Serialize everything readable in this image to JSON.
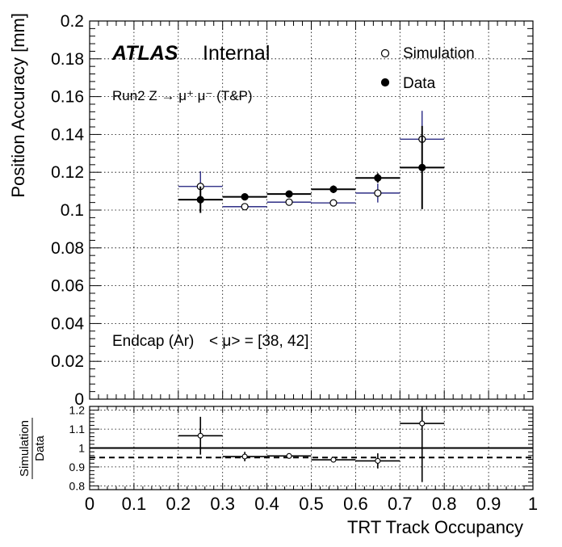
{
  "chart_data": [
    {
      "type": "scatter",
      "ylabel": "Position Accuracy [mm]",
      "ylim": [
        0,
        0.2
      ],
      "xlim": [
        0,
        1
      ],
      "yticks": [
        "0",
        "0.02",
        "0.04",
        "0.06",
        "0.08",
        "0.1",
        "0.12",
        "0.14",
        "0.16",
        "0.18",
        "0.2"
      ],
      "grid": true,
      "legend_position": "top-right",
      "annotations": {
        "atlas": "ATLAS",
        "internal": "Internal",
        "run": "Run2 Z → μ⁺ μ⁻ (T&P)",
        "region": "Endcap (Ar)",
        "pileup": "< μ> = [38, 42]"
      },
      "x": [
        0.25,
        0.35,
        0.45,
        0.55,
        0.65,
        0.75
      ],
      "series": [
        {
          "name": "Simulation",
          "marker": "open-circle",
          "color": "#1a1a7a",
          "values": [
            0.1125,
            0.1018,
            0.1042,
            0.1038,
            0.109,
            0.1375
          ],
          "yerr": [
            0.008,
            0.0012,
            0.0012,
            0.0012,
            0.005,
            0.015
          ]
        },
        {
          "name": "Data",
          "marker": "filled-circle",
          "color": "#000000",
          "values": [
            0.1055,
            0.107,
            0.1085,
            0.111,
            0.117,
            0.1225
          ],
          "yerr": [
            0.007,
            0.0015,
            0.0015,
            0.002,
            0.0025,
            0.022
          ]
        }
      ]
    },
    {
      "type": "scatter",
      "ylabel_top": "Simulation",
      "ylabel_bottom": "Data",
      "xlabel": "TRT Track Occupancy",
      "xlim": [
        0,
        1
      ],
      "ylim": [
        0.78,
        1.22
      ],
      "xticks": [
        "0",
        "0.1",
        "0.2",
        "0.3",
        "0.4",
        "0.5",
        "0.6",
        "0.7",
        "0.8",
        "0.9",
        "1"
      ],
      "yticks": [
        "0.8",
        "0.9",
        "1",
        "1.1",
        "1.2"
      ],
      "grid": true,
      "reference_lines": [
        {
          "y": 1.0,
          "style": "solid"
        },
        {
          "y": 0.95,
          "style": "dashed"
        }
      ],
      "series": [
        {
          "name": "Simulation/Data",
          "marker": "open-circle",
          "x": [
            0.25,
            0.35,
            0.45,
            0.55,
            0.65,
            0.75
          ],
          "values": [
            1.065,
            0.955,
            0.958,
            0.938,
            0.932,
            1.13
          ],
          "yerr": [
            0.1,
            0.025,
            0.012,
            0.012,
            0.04,
            0.31
          ]
        }
      ]
    }
  ]
}
